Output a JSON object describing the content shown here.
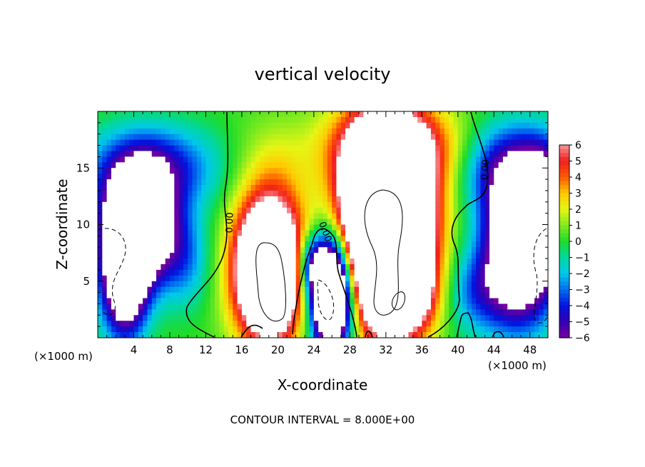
{
  "chart_data": {
    "type": "heatmap",
    "title": "vertical velocity",
    "xlabel": "X-coordinate",
    "ylabel": "Z-coordinate",
    "x_unit": "(×1000 m)",
    "x_unit_right": "(×1000 m)",
    "footer": "CONTOUR INTERVAL = 8.000E+00",
    "xlim": [
      0,
      50
    ],
    "ylim": [
      0,
      20
    ],
    "x_ticks": [
      "4",
      "8",
      "12",
      "16",
      "20",
      "24",
      "28",
      "32",
      "36",
      "40",
      "44",
      "48"
    ],
    "y_ticks": [
      "5",
      "10",
      "15"
    ],
    "colorbar": {
      "min": -6,
      "max": 6,
      "labels": [
        "6",
        "5",
        "4",
        "3",
        "2",
        "1",
        "0",
        "−1",
        "−2",
        "−3",
        "−4",
        "−5",
        "−6"
      ]
    },
    "contour_labels": [
      "0.00",
      "0.00",
      "0.00",
      "0.00"
    ],
    "features": [
      {
        "x": 19,
        "z": 6,
        "w": 16,
        "kind": "updraft"
      },
      {
        "x": 32,
        "z": 10,
        "w": 24,
        "kind": "updraft"
      },
      {
        "x": 33,
        "z": 17,
        "w": 4.5,
        "kind": "updraft"
      },
      {
        "x": 26,
        "z": 4,
        "w": -18,
        "kind": "downdraft"
      },
      {
        "x": 4.5,
        "z": 10,
        "w": -14,
        "kind": "downdraft"
      },
      {
        "x": 6,
        "z": 15,
        "w": -5,
        "kind": "downdraft"
      },
      {
        "x": 47,
        "z": 8,
        "w": -12,
        "kind": "downdraft"
      },
      {
        "x": 46,
        "z": 15,
        "w": -5,
        "kind": "downdraft"
      },
      {
        "x": 42,
        "z": 4,
        "w": -3,
        "kind": "downdraft"
      }
    ]
  }
}
